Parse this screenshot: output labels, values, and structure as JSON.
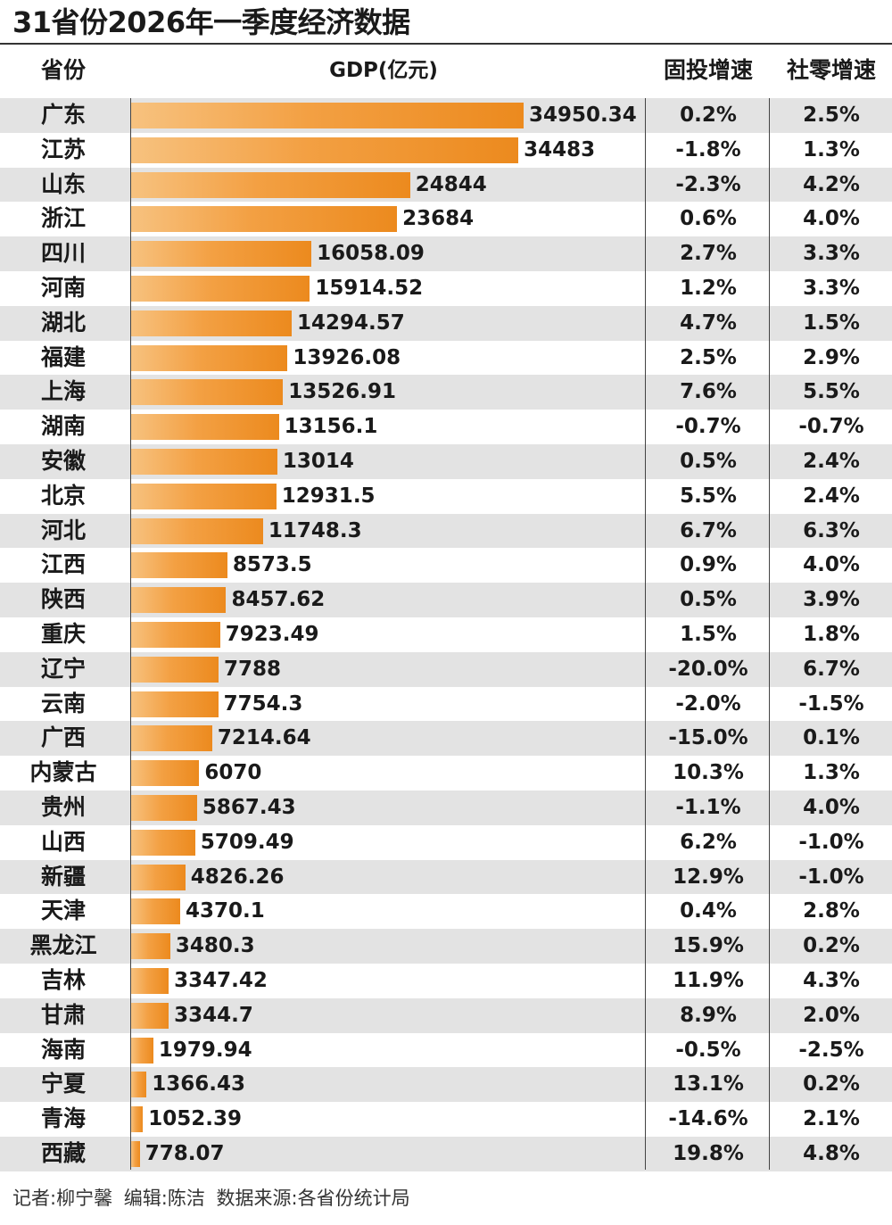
{
  "title": "31省份2026年一季度经济数据",
  "headers": {
    "province": "省份",
    "gdp": "GDP(亿元)",
    "fixed_investment": "固投增速",
    "retail": "社零增速"
  },
  "footer": "记者:柳宁馨 编辑:陈洁 数据来源:各省份统计局",
  "colors": {
    "bar_light": "#f7c27f",
    "bar_dark": "#ec8a1e",
    "row_shade": "#e3e3e3"
  },
  "chart_data": {
    "type": "bar",
    "orientation": "horizontal",
    "title": "31省份2026年一季度经济数据",
    "xlabel": "GDP(亿元)",
    "xlim": [
      0,
      35000
    ],
    "categories": [
      "广东",
      "江苏",
      "山东",
      "浙江",
      "四川",
      "河南",
      "湖北",
      "福建",
      "上海",
      "湖南",
      "安徽",
      "北京",
      "河北",
      "江西",
      "陕西",
      "重庆",
      "辽宁",
      "云南",
      "广西",
      "内蒙古",
      "贵州",
      "山西",
      "新疆",
      "天津",
      "黑龙江",
      "吉林",
      "甘肃",
      "海南",
      "宁夏",
      "青海",
      "西藏"
    ],
    "values": [
      34950.34,
      34483,
      24844,
      23684,
      16058.09,
      15914.52,
      14294.57,
      13926.08,
      13526.91,
      13156.1,
      13014,
      12931.5,
      11748.3,
      8573.5,
      8457.62,
      7923.49,
      7788,
      7754.3,
      7214.64,
      6070,
      5867.43,
      5709.49,
      4826.26,
      4370.1,
      3480.3,
      3347.42,
      3344.7,
      1979.94,
      1366.43,
      1052.39,
      778.07
    ],
    "value_labels": [
      "34950.34",
      "34483",
      "24844",
      "23684",
      "16058.09",
      "15914.52",
      "14294.57",
      "13926.08",
      "13526.91",
      "13156.1",
      "13014",
      "12931.5",
      "11748.3",
      "8573.5",
      "8457.62",
      "7923.49",
      "7788",
      "7754.3",
      "7214.64",
      "6070",
      "5867.43",
      "5709.49",
      "4826.26",
      "4370.1",
      "3480.3",
      "3347.42",
      "3344.7",
      "1979.94",
      "1366.43",
      "1052.39",
      "778.07"
    ],
    "fixed_investment_growth": [
      "0.2%",
      "-1.8%",
      "-2.3%",
      "0.6%",
      "2.7%",
      "1.2%",
      "4.7%",
      "2.5%",
      "7.6%",
      "-0.7%",
      "0.5%",
      "5.5%",
      "6.7%",
      "0.9%",
      "0.5%",
      "1.5%",
      "-20.0%",
      "-2.0%",
      "-15.0%",
      "10.3%",
      "-1.1%",
      "6.2%",
      "12.9%",
      "0.4%",
      "15.9%",
      "11.9%",
      "8.9%",
      "-0.5%",
      "13.1%",
      "-14.6%",
      "19.8%"
    ],
    "retail_growth": [
      "2.5%",
      "1.3%",
      "4.2%",
      "4.0%",
      "3.3%",
      "3.3%",
      "1.5%",
      "2.9%",
      "5.5%",
      "-0.7%",
      "2.4%",
      "2.4%",
      "6.3%",
      "4.0%",
      "3.9%",
      "1.8%",
      "6.7%",
      "-1.5%",
      "0.1%",
      "1.3%",
      "4.0%",
      "-1.0%",
      "-1.0%",
      "2.8%",
      "0.2%",
      "4.3%",
      "2.0%",
      "-2.5%",
      "0.2%",
      "2.1%",
      "4.8%"
    ]
  }
}
